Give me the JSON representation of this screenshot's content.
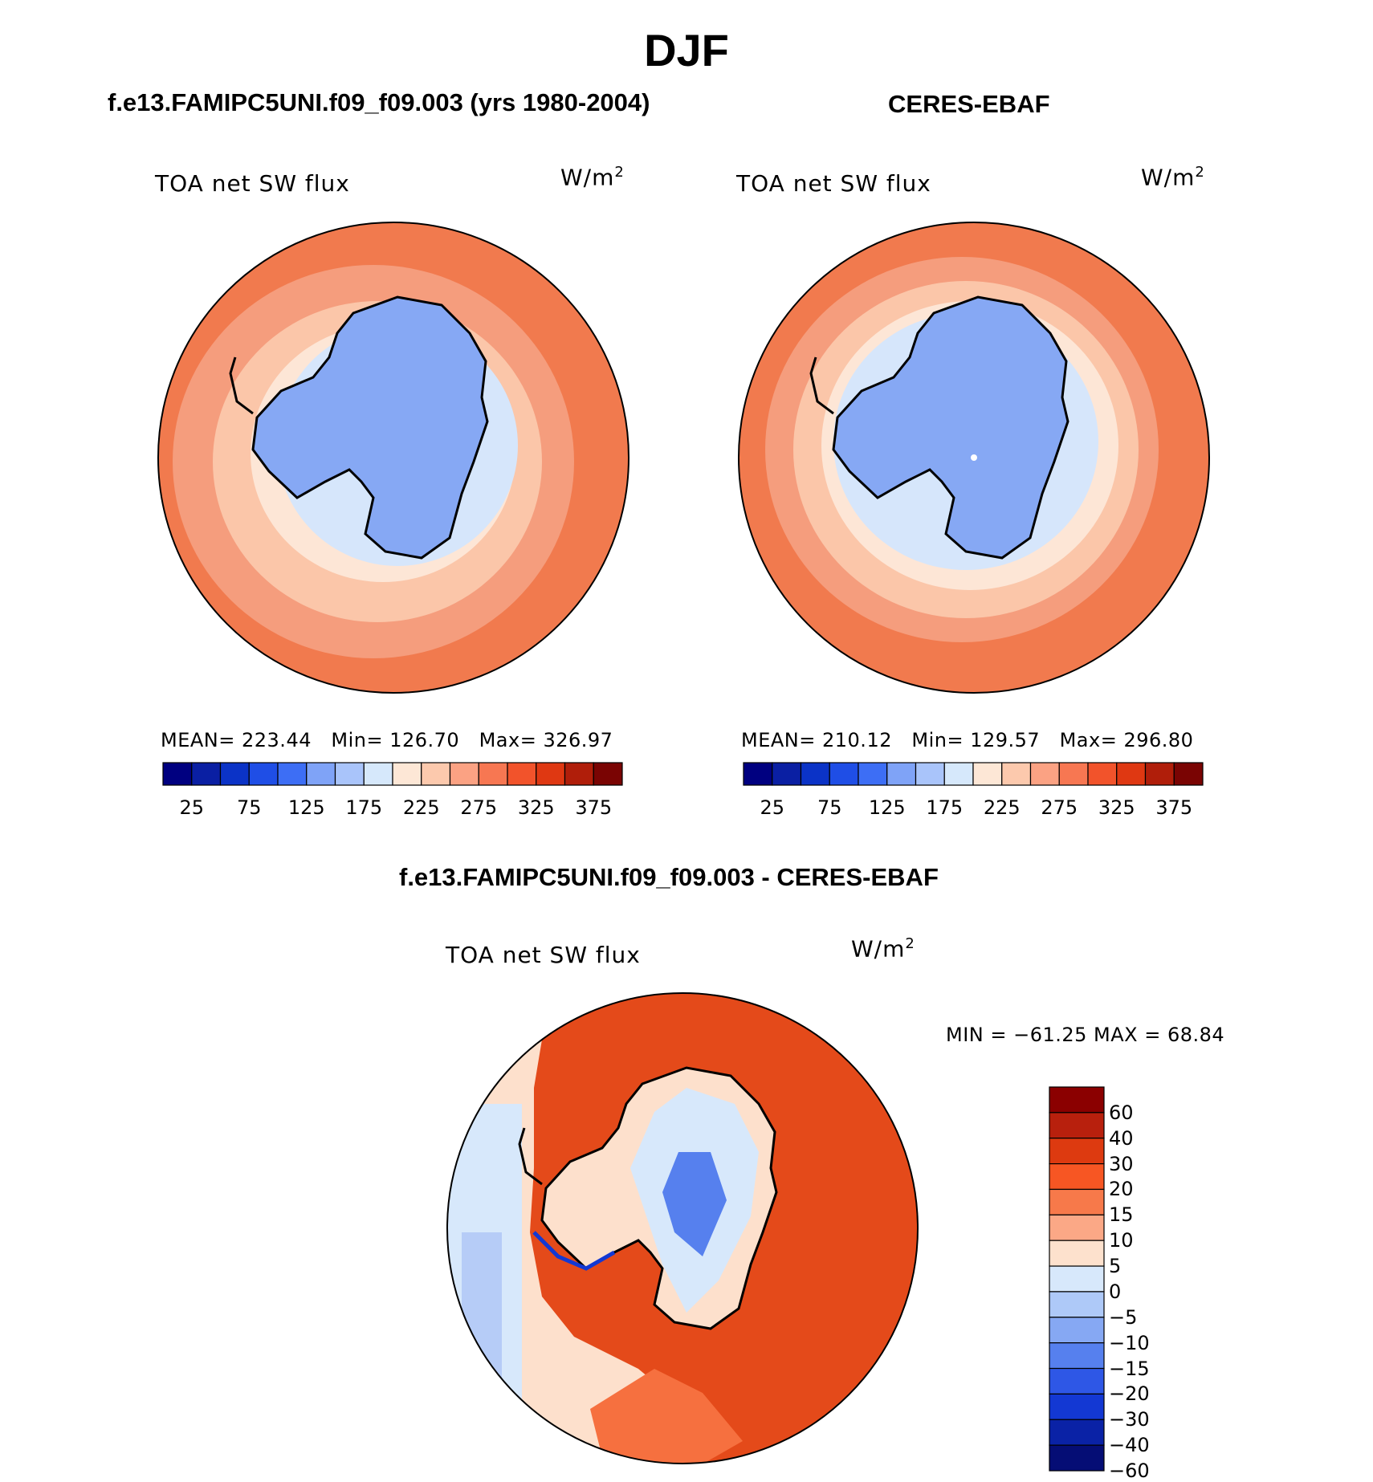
{
  "main_title": "DJF",
  "panels": [
    {
      "title": "f.e13.FAMIPC5UNI.f09_f09.003 (yrs 1980-2004)",
      "field": "TOA net SW flux",
      "units_base": "W/m",
      "units_exp": "2",
      "mean_label": "MEAN=",
      "mean": "223.44",
      "min_label": "Min=",
      "min": "126.70",
      "max_label": "Max=",
      "max": "326.97"
    },
    {
      "title": "CERES-EBAF",
      "field": "TOA net SW flux",
      "units_base": "W/m",
      "units_exp": "2",
      "mean_label": "MEAN=",
      "mean": "210.12",
      "min_label": "Min=",
      "min": "129.57",
      "max_label": "Max=",
      "max": "296.80"
    },
    {
      "title": "f.e13.FAMIPC5UNI.f09_f09.003 - CERES-EBAF",
      "field": "TOA net SW flux",
      "units_base": "W/m",
      "units_exp": "2",
      "minmax_text": "MIN = −61.25 MAX =   68.84"
    }
  ],
  "abs_colorbar": {
    "colors": [
      "#000080",
      "#0a1fa3",
      "#0b33c7",
      "#1f4ee6",
      "#3d6ef5",
      "#7fa3f7",
      "#a9c4fa",
      "#d6e8fb",
      "#fde7d6",
      "#fcc9ad",
      "#fba283",
      "#f77752",
      "#f2532b",
      "#df3812",
      "#b01e0a",
      "#7a0403"
    ],
    "tick_labels": [
      "25",
      "75",
      "125",
      "175",
      "225",
      "275",
      "325",
      "375"
    ]
  },
  "diff_colorbar": {
    "colors": [
      "#8b0000",
      "#b8200d",
      "#dd3a10",
      "#f75623",
      "#f7794a",
      "#fba886",
      "#fde1cd",
      "#d7e8fb",
      "#aec9f8",
      "#86a8f3",
      "#5680ee",
      "#2e57e6",
      "#1338d3",
      "#0a22a6",
      "#050d75"
    ],
    "tick_labels": [
      "60",
      "40",
      "30",
      "20",
      "15",
      "10",
      "5",
      "0",
      "−5",
      "−10",
      "−15",
      "−20",
      "−30",
      "−40",
      "−60"
    ]
  },
  "legend_colors": {
    "ocean_outer": "#f17a4e",
    "ocean_mid": "#f59d7d",
    "ocean_inner": "#fbc6a9",
    "sea_ice": "#fde6d6",
    "ice_edge": "#d6e6fb",
    "antarctica": "#86a8f4",
    "diff_positive": "#e44a1a",
    "diff_weak": "#fde0cc",
    "diff_negative": "#b6ccf7",
    "coastline": "#000000"
  }
}
